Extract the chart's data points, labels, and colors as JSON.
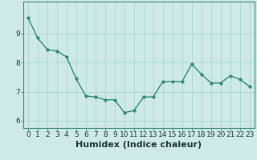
{
  "x": [
    0,
    1,
    2,
    3,
    4,
    5,
    6,
    7,
    8,
    9,
    10,
    11,
    12,
    13,
    14,
    15,
    16,
    17,
    18,
    19,
    20,
    21,
    22,
    23
  ],
  "y": [
    9.55,
    8.85,
    8.45,
    8.4,
    8.2,
    7.45,
    6.85,
    6.82,
    6.72,
    6.72,
    6.28,
    6.35,
    6.82,
    6.82,
    7.35,
    7.35,
    7.35,
    7.95,
    7.6,
    7.3,
    7.3,
    7.55,
    7.42,
    7.18
  ],
  "line_color": "#2e8b72",
  "marker": "o",
  "marker_size": 2.5,
  "bg_color": "#ceeae8",
  "grid_color": "#a8d5d0",
  "xlabel": "Humidex (Indice chaleur)",
  "xlabel_fontsize": 8,
  "ylim": [
    5.75,
    10.1
  ],
  "xlim": [
    -0.5,
    23.5
  ],
  "yticks": [
    6,
    7,
    8,
    9
  ],
  "xticks": [
    0,
    1,
    2,
    3,
    4,
    5,
    6,
    7,
    8,
    9,
    10,
    11,
    12,
    13,
    14,
    15,
    16,
    17,
    18,
    19,
    20,
    21,
    22,
    23
  ],
  "tick_fontsize": 6.5,
  "line_width": 1.0,
  "spine_color": "#3a8a7a"
}
